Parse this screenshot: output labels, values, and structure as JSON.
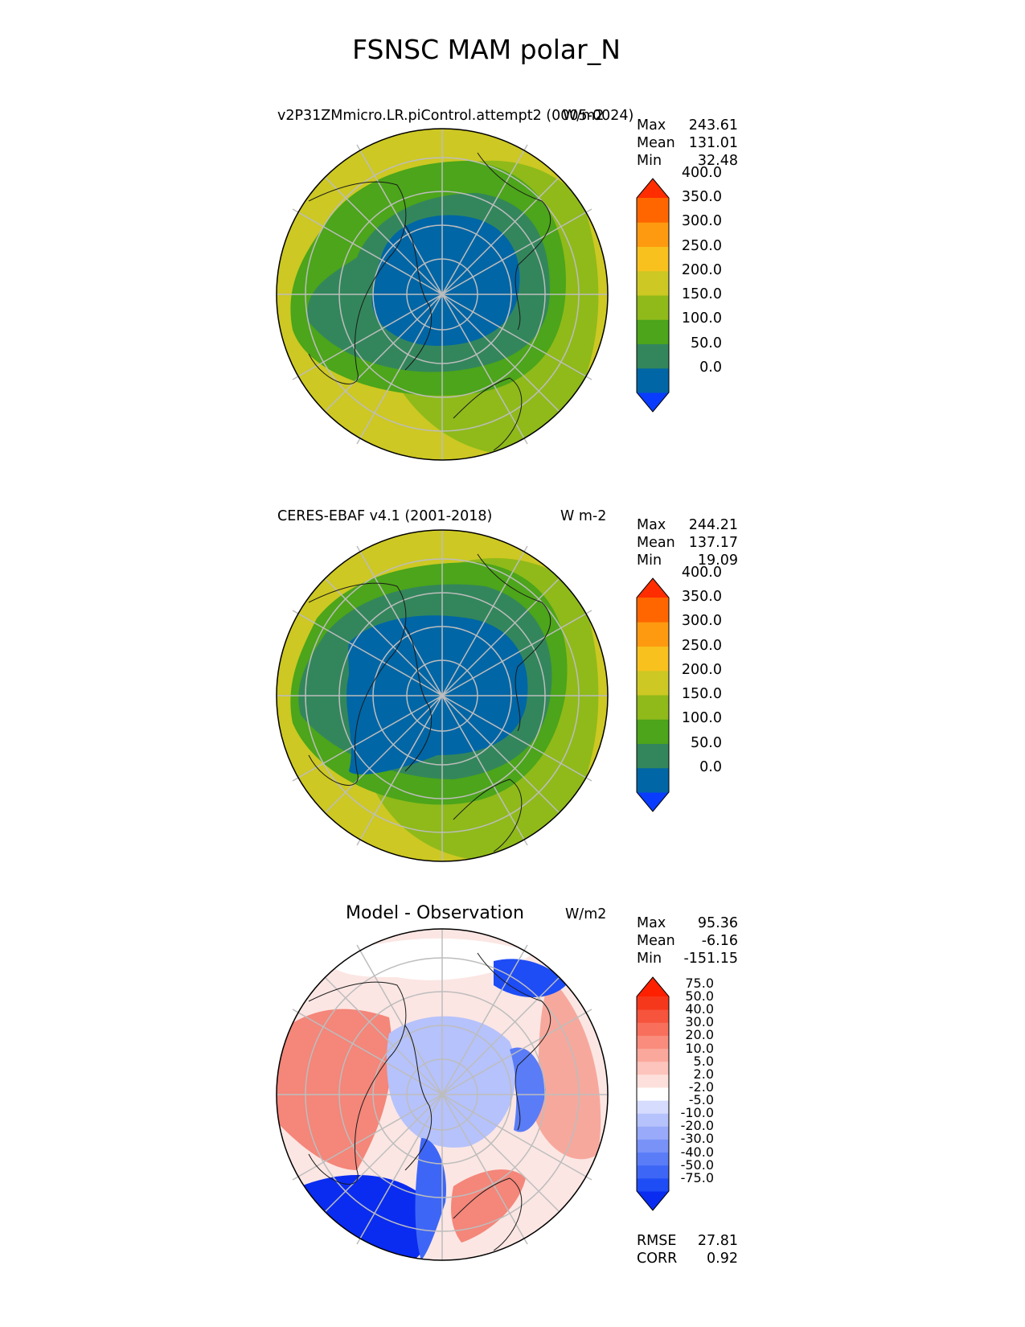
{
  "figure_title": "FSNSC MAM polar_N",
  "panels": [
    {
      "title": "v2P31ZMmicro.LR.piControl.attempt2 (0005-0024)",
      "units": "W/m2",
      "stats": [
        {
          "label": "Max",
          "value": "243.61"
        },
        {
          "label": "Mean",
          "value": "131.01"
        },
        {
          "label": "Min",
          "value": "32.48"
        }
      ]
    },
    {
      "title": "CERES-EBAF v4.1 (2001-2018)",
      "units": "W m-2",
      "stats": [
        {
          "label": "Max",
          "value": "244.21"
        },
        {
          "label": "Mean",
          "value": "137.17"
        },
        {
          "label": "Min",
          "value": "19.09"
        }
      ]
    },
    {
      "title": "Model - Observation",
      "units": "W/m2",
      "stats": [
        {
          "label": "Max",
          "value": "95.36"
        },
        {
          "label": "Mean",
          "value": "-6.16"
        },
        {
          "label": "Min",
          "value": "-151.15"
        }
      ],
      "metrics": [
        {
          "label": "RMSE",
          "value": "27.81"
        },
        {
          "label": "CORR",
          "value": "0.92"
        }
      ]
    }
  ],
  "chart_data": [
    {
      "type": "heatmap",
      "projection": "north polar stereographic",
      "panel": 0,
      "colorbar": {
        "labels": [
          "0.0",
          "50.0",
          "100.0",
          "150.0",
          "200.0",
          "250.0",
          "300.0",
          "350.0",
          "400.0"
        ],
        "levels": [
          0,
          50,
          100,
          150,
          200,
          250,
          300,
          350,
          400
        ],
        "colors": [
          "#0a3cff",
          "#0066a6",
          "#33865c",
          "#4ca51a",
          "#8fba1a",
          "#cdc823",
          "#f8c11e",
          "#fd9a10",
          "#ff6600",
          "#ff2d00"
        ],
        "extend": "both"
      }
    },
    {
      "type": "heatmap",
      "projection": "north polar stereographic",
      "panel": 1,
      "colorbar": {
        "labels": [
          "0.0",
          "50.0",
          "100.0",
          "150.0",
          "200.0",
          "250.0",
          "300.0",
          "350.0",
          "400.0"
        ],
        "levels": [
          0,
          50,
          100,
          150,
          200,
          250,
          300,
          350,
          400
        ],
        "colors": [
          "#0a3cff",
          "#0066a6",
          "#33865c",
          "#4ca51a",
          "#8fba1a",
          "#cdc823",
          "#f8c11e",
          "#fd9a10",
          "#ff6600",
          "#ff2d00"
        ],
        "extend": "both"
      }
    },
    {
      "type": "heatmap",
      "projection": "north polar stereographic",
      "panel": 2,
      "colorbar": {
        "labels": [
          "-75.0",
          "-50.0",
          "-40.0",
          "-30.0",
          "-20.0",
          "-10.0",
          "-5.0",
          "-2.0",
          "2.0",
          "5.0",
          "10.0",
          "20.0",
          "30.0",
          "40.0",
          "50.0",
          "75.0"
        ],
        "levels": [
          -75,
          -50,
          -40,
          -30,
          -20,
          -10,
          -5,
          -2,
          2,
          5,
          10,
          20,
          30,
          40,
          50,
          75
        ],
        "colors": [
          "#0a2cf0",
          "#1e4cf5",
          "#3e66f6",
          "#5a7cf7",
          "#7892f8",
          "#98aaf9",
          "#b6c2fb",
          "#d6dcfd",
          "#ffffff",
          "#fde0dc",
          "#fcc4bc",
          "#fba89c",
          "#f98c7c",
          "#f8705c",
          "#f6543c",
          "#f5381c",
          "#ff2000"
        ],
        "extend": "both"
      }
    }
  ]
}
